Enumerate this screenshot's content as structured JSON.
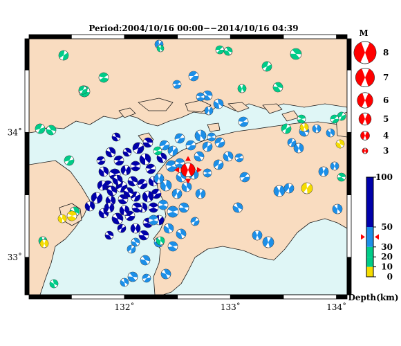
{
  "title": "Period:2004/10/16 00:00−−2014/10/16 04:39",
  "colors": {
    "sea": "#dff6f6",
    "land": "#f9dcc0",
    "coast": "#1a1a1a",
    "depth_deep": "#0000aa",
    "depth_mid": "#1c8fe8",
    "depth_shallow": "#00cc88",
    "depth_surface": "#f5dc00",
    "main_shock": "#ff0000"
  },
  "axes": {
    "lon_ticks": [
      {
        "value": 132,
        "label": "132˚"
      },
      {
        "value": 133,
        "label": "133˚"
      },
      {
        "value": 134,
        "label": "134˚"
      }
    ],
    "lat_ticks": [
      {
        "value": 34,
        "label": "34˚"
      },
      {
        "value": 33,
        "label": "33˚"
      }
    ],
    "lon_range": [
      131.1,
      134.1
    ],
    "lat_range": [
      32.7,
      34.75
    ]
  },
  "magnitude_legend": {
    "label": "M",
    "items": [
      {
        "value": 8,
        "label": "8"
      },
      {
        "value": 7,
        "label": "7"
      },
      {
        "value": 6,
        "label": "6"
      },
      {
        "value": 5,
        "label": "5"
      },
      {
        "value": 4,
        "label": "4"
      },
      {
        "value": 3,
        "label": "3"
      }
    ]
  },
  "depth_legend": {
    "label": "Depth(km)",
    "max_depth": 100,
    "ticks": [
      {
        "value": 100,
        "label": "100"
      },
      {
        "value": 50,
        "label": "50"
      },
      {
        "value": 30,
        "label": "30"
      },
      {
        "value": 20,
        "label": "20"
      },
      {
        "value": 10,
        "label": "10"
      },
      {
        "value": 0,
        "label": "0"
      }
    ],
    "marker_depth": 40
  },
  "main_shock": {
    "lon": 132.6,
    "lat": 33.7,
    "mag": 5.5
  }
}
